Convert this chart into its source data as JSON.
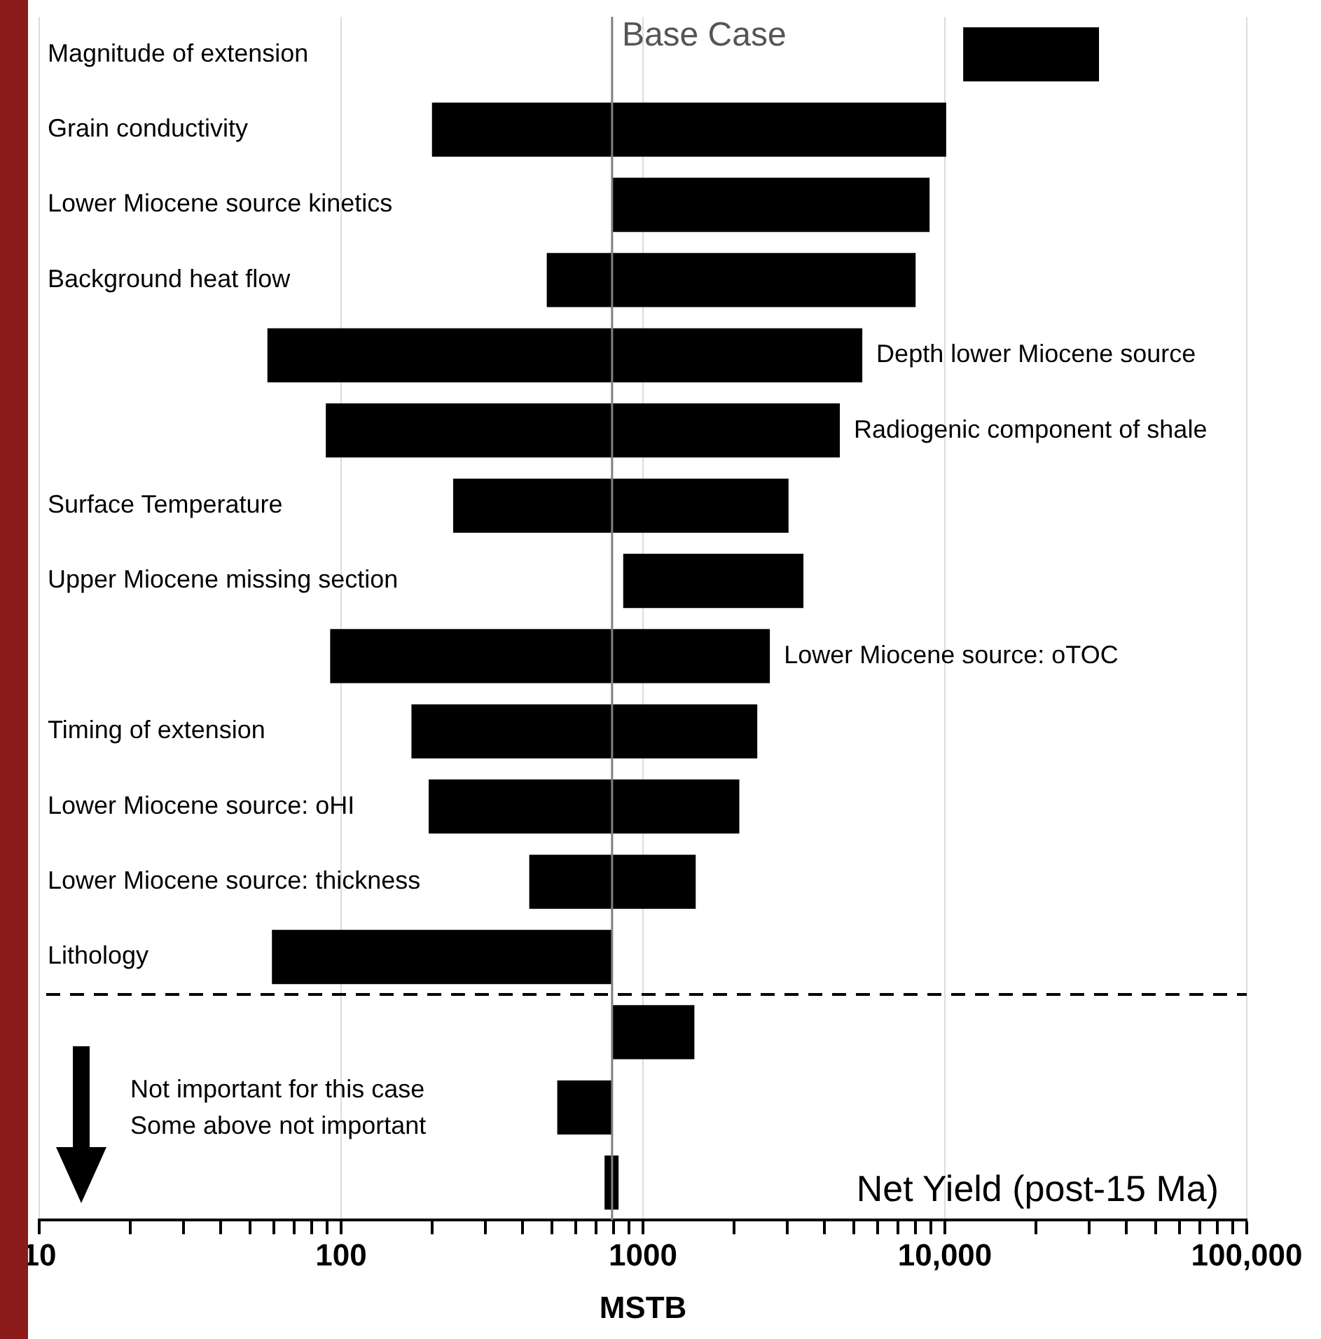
{
  "chart_data": {
    "type": "bar",
    "orientation": "horizontal",
    "title": "Net Yield (post-15 Ma)",
    "xlabel": "MSTB",
    "categories": [
      "Magnitude of extension",
      "Grain conductivity",
      "Lower Miocene source kinetics",
      "Background heat flow",
      "Depth lower Miocene source",
      "Radiogenic component of shale",
      "Surface Temperature",
      "Upper Miocene missing section",
      "Lower Miocene source: oTOC",
      "Timing of extension",
      "Lower Miocene source: oHI",
      "Lower Miocene source: thickness",
      "Lithology",
      null,
      null,
      null
    ],
    "base": [
      11500,
      200,
      790,
      480,
      57,
      89,
      235,
      860,
      92,
      171,
      195,
      420,
      59,
      790,
      520,
      746
    ],
    "values": [
      20900,
      9900,
      8110,
      7520,
      5270,
      4400,
      2800,
      2540,
      2540,
      2220,
      1890,
      1075,
      731,
      690,
      270,
      84
    ],
    "color": "#000000",
    "log": "x",
    "xlim": [
      10,
      100000
    ],
    "xticks": [
      10,
      {
        "value": 20,
        "label": null
      },
      {
        "value": 30,
        "label": null
      },
      {
        "value": 40,
        "label": null
      },
      {
        "value": 50,
        "label": null
      },
      {
        "value": 60,
        "label": null
      },
      {
        "value": 70,
        "label": null
      },
      {
        "value": 80,
        "label": null
      },
      {
        "value": 90,
        "label": null
      },
      100,
      {
        "value": 200,
        "label": null
      },
      {
        "value": 300,
        "label": null
      },
      {
        "value": 400,
        "label": null
      },
      {
        "value": 500,
        "label": null
      },
      {
        "value": 600,
        "label": null
      },
      {
        "value": 700,
        "label": null
      },
      {
        "value": 800,
        "label": null
      },
      {
        "value": 900,
        "label": null
      },
      1000,
      {
        "value": 2000,
        "label": null
      },
      {
        "value": 3000,
        "label": null
      },
      {
        "value": 4000,
        "label": null
      },
      {
        "value": 5000,
        "label": null
      },
      {
        "value": 6000,
        "label": null
      },
      {
        "value": 7000,
        "label": null
      },
      {
        "value": 8000,
        "label": null
      },
      {
        "value": 9000,
        "label": null
      },
      {
        "value": 10000,
        "label": "10,000"
      },
      {
        "value": 20000,
        "label": null
      },
      {
        "value": 30000,
        "label": null
      },
      {
        "value": 40000,
        "label": null
      },
      {
        "value": 50000,
        "label": null
      },
      {
        "value": 60000,
        "label": null
      },
      {
        "value": 70000,
        "label": null
      },
      {
        "value": 80000,
        "label": null
      },
      {
        "value": 90000,
        "label": null
      },
      {
        "value": 100000,
        "label": "100,000"
      }
    ],
    "grid": "x",
    "legend": false,
    "ref_lines": [
      {
        "axis": "x",
        "value": 790,
        "label": "Base Case",
        "color": "#808080"
      }
    ],
    "annotations": [
      "Not important for this case",
      "Some above not important"
    ]
  }
}
